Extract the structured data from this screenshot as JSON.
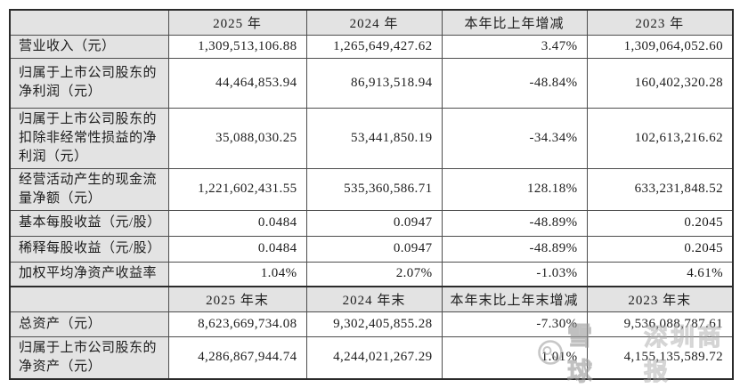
{
  "table": {
    "header_period": {
      "label": "",
      "col_2025": "2025 年",
      "col_2024": "2024 年",
      "col_change": "本年比上年增减",
      "col_2023": "2023 年"
    },
    "rows_period": [
      {
        "label": "营业收入（元）",
        "v2025": "1,309,513,106.88",
        "v2024": "1,265,649,427.62",
        "change": "3.47%",
        "v2023": "1,309,064,052.60"
      },
      {
        "label": "归属于上市公司股东的净利润（元）",
        "v2025": "44,464,853.94",
        "v2024": "86,913,518.94",
        "change": "-48.84%",
        "v2023": "160,402,320.28"
      },
      {
        "label": "归属于上市公司股东的扣除非经常性损益的净利润（元）",
        "v2025": "35,088,030.25",
        "v2024": "53,441,850.19",
        "change": "-34.34%",
        "v2023": "102,613,216.62"
      },
      {
        "label": "经营活动产生的现金流量净额（元）",
        "v2025": "1,221,602,431.55",
        "v2024": "535,360,586.71",
        "change": "128.18%",
        "v2023": "633,231,848.52"
      },
      {
        "label": "基本每股收益（元/股）",
        "v2025": "0.0484",
        "v2024": "0.0947",
        "change": "-48.89%",
        "v2023": "0.2045"
      },
      {
        "label": "稀释每股收益（元/股）",
        "v2025": "0.0484",
        "v2024": "0.0947",
        "change": "-48.89%",
        "v2023": "0.2045"
      },
      {
        "label": "加权平均净资产收益率",
        "v2025": "1.04%",
        "v2024": "2.07%",
        "change": "-1.03%",
        "v2023": "4.61%"
      }
    ],
    "header_period_end": {
      "label": "",
      "col_2025": "2025 年末",
      "col_2024": "2024 年末",
      "col_change": "本年末比上年末增减",
      "col_2023": "2023 年末"
    },
    "rows_period_end": [
      {
        "label": "总资产（元）",
        "v2025": "8,623,669,734.08",
        "v2024": "9,302,405,855.28",
        "change": "-7.30%",
        "v2023": "9,536,088,787.61"
      },
      {
        "label": "归属于上市公司股东的净资产（元）",
        "v2025": "4,286,867,944.74",
        "v2024": "4,244,021,267.29",
        "change": "1.01%",
        "v2023": "4,155,135,589.72"
      }
    ]
  },
  "watermark": {
    "logo_icon": "xueqiu-snowball-logo",
    "brand": "雪球",
    "source": "深圳商报"
  },
  "colors": {
    "header_bg": "#e3e3e3",
    "grid_line": "#4d4d4d",
    "outer_border": "#2b2b2b",
    "text": "#1d1d1d",
    "watermark_gray": "#a5a5a5"
  }
}
